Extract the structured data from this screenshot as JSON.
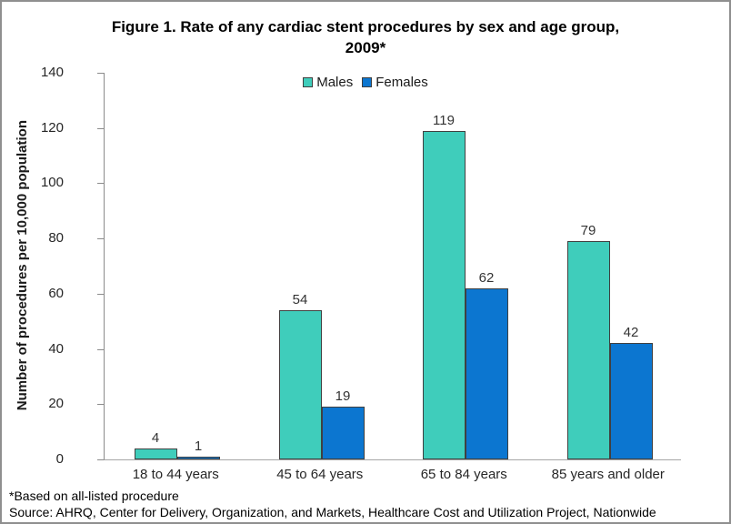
{
  "figure": {
    "title_lines": [
      "Figure 1. Rate of any cardiac stent procedures by sex and age group,",
      "2009*"
    ],
    "footnote": "*Based on all-listed procedure",
    "source": "Source: AHRQ, Center for Delivery, Organization, and Markets, Healthcare Cost and Utilization Project, Nationwide"
  },
  "colors": {
    "males": "#3FCDBB",
    "females": "#0C76D0",
    "bar_border": "#404040",
    "axis": "#8C8C8C",
    "baseline": "#A6A6A6"
  },
  "chart_data": {
    "type": "bar",
    "title": "Figure 1. Rate of any cardiac stent procedures by sex and age group, 2009*",
    "categories": [
      "18 to 44 years",
      "45 to 64 years",
      "65 to 84 years",
      "85 years and older"
    ],
    "series": [
      {
        "name": "Males",
        "color": "#3FCDBB",
        "values": [
          4,
          54,
          119,
          79
        ]
      },
      {
        "name": "Females",
        "color": "#0C76D0",
        "values": [
          1,
          19,
          62,
          42
        ]
      }
    ],
    "xlabel": "",
    "ylabel": "Number of procedures per 10,000 population",
    "ylim": [
      0,
      140
    ],
    "yticks": [
      0,
      20,
      40,
      60,
      80,
      100,
      120,
      140
    ],
    "grid": false,
    "legend_position": "top-center",
    "data_labels": true
  }
}
